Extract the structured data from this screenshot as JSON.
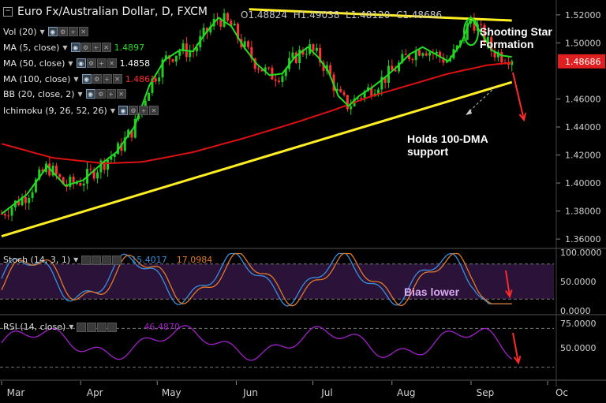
{
  "header": {
    "title": "Euro Fx/Australian Dollar, D, FXCM",
    "ohlc": {
      "o": "O1.48824",
      "h": "H1.49038",
      "l": "L1.48120",
      "c": "C1.48686"
    }
  },
  "indicators": [
    {
      "label": "Vol (20)",
      "value": "",
      "color": "#ffffff"
    },
    {
      "label": "MA (5, close)",
      "value": "1.4897",
      "color": "#22dd22"
    },
    {
      "label": "MA (50, close)",
      "value": "1.4858",
      "color": "#ffffff"
    },
    {
      "label": "MA (100, close)",
      "value": "1.4861",
      "color": "#ff2a2a"
    },
    {
      "label": "BB (20, close, 2)",
      "value": "",
      "color": "#ffffff"
    },
    {
      "label": "Ichimoku (9, 26, 52, 26)",
      "value": "",
      "color": "#ffffff"
    }
  ],
  "annotations": {
    "shooting_star": "Shooting Star\nFormation",
    "holds_support": "Holds 100-DMA\nsupport",
    "bias_lower": "Bias lower"
  },
  "colors": {
    "up_candle": "#22cc22",
    "down_candle": "#ff3333",
    "ma5": "#22dd22",
    "ma100": "#dd1111",
    "trendline": "#ffee22",
    "stoch_k": "#3a8fdd",
    "stoch_d": "#e07a2a",
    "rsi": "#a020c8",
    "price_badge": "#e02020"
  },
  "chart_data": [
    {
      "type": "candlestick",
      "title": "Euro Fx/Australian Dollar, D, FXCM",
      "ylim": [
        1.355,
        1.525
      ],
      "y_ticks": [
        "1.52000",
        "1.50000",
        "1.48686",
        "1.46000",
        "1.44000",
        "1.42000",
        "1.40000",
        "1.38000",
        "1.36000"
      ],
      "current_price": "1.48686",
      "x_ticks": [
        "Mar",
        "Apr",
        "May",
        "Jun",
        "Jul",
        "Aug",
        "Sep",
        "Oc"
      ],
      "x_tick_days": [
        0,
        31,
        61,
        92,
        122,
        153,
        184,
        214
      ],
      "series": [
        {
          "name": "MA (5, close)",
          "anchors": [
            [
              0,
              1.378
            ],
            [
              10,
              1.392
            ],
            [
              18,
              1.412
            ],
            [
              25,
              1.398
            ],
            [
              32,
              1.402
            ],
            [
              40,
              1.415
            ],
            [
              45,
              1.422
            ],
            [
              52,
              1.44
            ],
            [
              58,
              1.47
            ],
            [
              64,
              1.488
            ],
            [
              70,
              1.495
            ],
            [
              75,
              1.494
            ],
            [
              80,
              1.507
            ],
            [
              85,
              1.518
            ],
            [
              90,
              1.512
            ],
            [
              95,
              1.497
            ],
            [
              100,
              1.485
            ],
            [
              105,
              1.477
            ],
            [
              110,
              1.478
            ],
            [
              115,
              1.49
            ],
            [
              120,
              1.497
            ],
            [
              124,
              1.49
            ],
            [
              128,
              1.48
            ],
            [
              132,
              1.462
            ],
            [
              136,
              1.455
            ],
            [
              140,
              1.462
            ],
            [
              145,
              1.468
            ],
            [
              150,
              1.475
            ],
            [
              155,
              1.483
            ],
            [
              160,
              1.492
            ],
            [
              165,
              1.497
            ],
            [
              170,
              1.492
            ],
            [
              175,
              1.487
            ],
            [
              180,
              1.499
            ],
            [
              184,
              1.518
            ],
            [
              188,
              1.507
            ],
            [
              192,
              1.495
            ],
            [
              196,
              1.491
            ],
            [
              200,
              1.49
            ]
          ]
        },
        {
          "name": "MA (100, close)",
          "anchors": [
            [
              0,
              1.428
            ],
            [
              20,
              1.418
            ],
            [
              40,
              1.414
            ],
            [
              55,
              1.415
            ],
            [
              75,
              1.422
            ],
            [
              95,
              1.432
            ],
            [
              115,
              1.443
            ],
            [
              130,
              1.452
            ],
            [
              145,
              1.462
            ],
            [
              160,
              1.47
            ],
            [
              175,
              1.478
            ],
            [
              190,
              1.484
            ],
            [
              200,
              1.486
            ]
          ]
        },
        {
          "name": "Trendline support",
          "anchors": [
            [
              0,
              1.362
            ],
            [
              200,
              1.472
            ]
          ]
        },
        {
          "name": "Trendline resistance",
          "anchors": [
            [
              97,
              1.524
            ],
            [
              200,
              1.516
            ]
          ]
        }
      ]
    },
    {
      "type": "line",
      "title": "Stoch (14, 3, 1)",
      "ylim": [
        0,
        100
      ],
      "y_ticks": [
        "100.0000",
        "50.0000",
        "0.0000"
      ],
      "series": [
        {
          "name": "%K",
          "value_label": "15.4017"
        },
        {
          "name": "%D",
          "value_label": "17.0984"
        }
      ]
    },
    {
      "type": "line",
      "title": "RSI (14, close)",
      "ylim": [
        20,
        80
      ],
      "y_ticks": [
        "75.0000",
        "50.0000"
      ],
      "series": [
        {
          "name": "RSI",
          "value_label": "46.4870"
        }
      ]
    }
  ]
}
